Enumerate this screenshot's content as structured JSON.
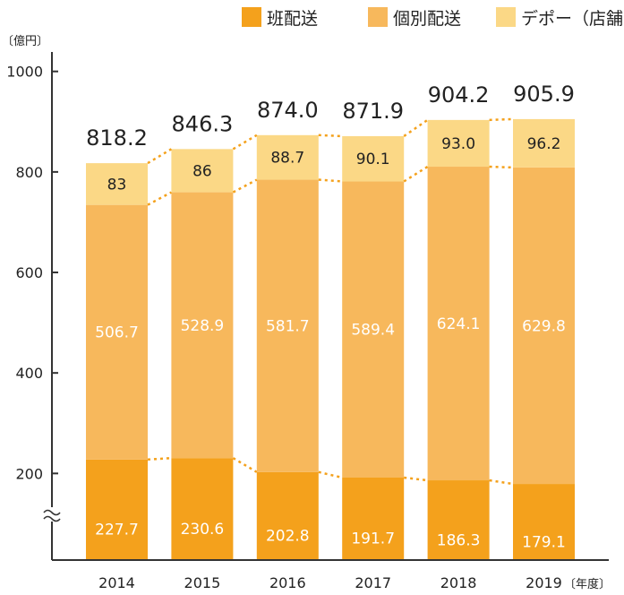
{
  "chart_data": {
    "type": "bar",
    "stacked": true,
    "categories": [
      "2014",
      "2015",
      "2016",
      "2017",
      "2018",
      "2019"
    ],
    "series": [
      {
        "name": "班配送",
        "color": "#f4a11c",
        "label_color": "#ffffff",
        "values": [
          227.7,
          230.6,
          202.8,
          191.7,
          186.3,
          179.1
        ],
        "labels": [
          "227.7",
          "230.6",
          "202.8",
          "191.7",
          "186.3",
          "179.1"
        ]
      },
      {
        "name": "個別配送",
        "color": "#f7b85c",
        "label_color": "#ffffff",
        "values": [
          506.7,
          528.9,
          581.7,
          589.4,
          624.1,
          629.8
        ],
        "labels": [
          "506.7",
          "528.9",
          "581.7",
          "589.4",
          "624.1",
          "629.8"
        ]
      },
      {
        "name": "デポー（店舗）",
        "color": "#fbd886",
        "label_color": "#222222",
        "values": [
          83,
          86,
          88.7,
          90.1,
          93.0,
          96.2
        ],
        "labels": [
          "83",
          "86",
          "88.7",
          "90.1",
          "93.0",
          "96.2"
        ]
      }
    ],
    "totals": [
      "818.2",
      "846.3",
      "874.0",
      "871.9",
      "904.2",
      "905.9"
    ],
    "y_unit": "〔億円〕",
    "x_unit": "〔年度〕",
    "y_ticks": [
      "200",
      "400",
      "600",
      "800",
      "1000"
    ],
    "ylim": [
      0,
      1000
    ],
    "axis_break": true,
    "connector_lines": "dotted",
    "legend_position": "top-right",
    "grid": false
  }
}
